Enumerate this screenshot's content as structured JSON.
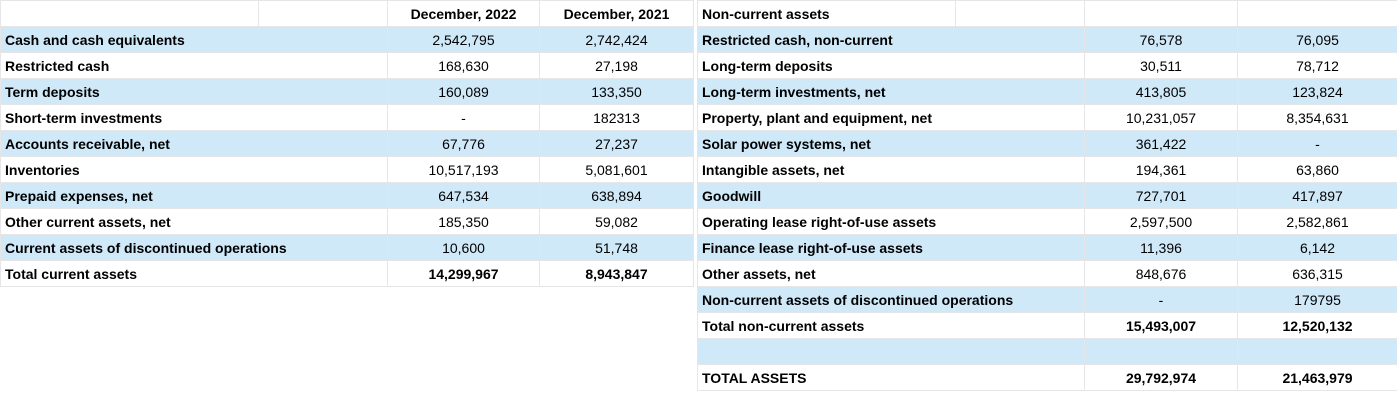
{
  "left": {
    "headers": [
      "",
      "December, 2022",
      "December, 2021"
    ],
    "rows": [
      {
        "label": "Cash and cash equivalents",
        "v2022": "2,542,795",
        "v2021": "2,742,424",
        "shaded": true,
        "bold": false
      },
      {
        "label": "Restricted cash",
        "v2022": "168,630",
        "v2021": "27,198",
        "shaded": false,
        "bold": false
      },
      {
        "label": "Term deposits",
        "v2022": "160,089",
        "v2021": "133,350",
        "shaded": true,
        "bold": false
      },
      {
        "label": "Short-term investments",
        "v2022": "-",
        "v2021": "182313",
        "shaded": false,
        "bold": false
      },
      {
        "label": "Accounts receivable, net",
        "v2022": "67,776",
        "v2021": "27,237",
        "shaded": true,
        "bold": false
      },
      {
        "label": "Inventories",
        "v2022": "10,517,193",
        "v2021": "5,081,601",
        "shaded": false,
        "bold": false
      },
      {
        "label": "Prepaid expenses, net",
        "v2022": "647,534",
        "v2021": "638,894",
        "shaded": true,
        "bold": false
      },
      {
        "label": "Other current assets, net",
        "v2022": "185,350",
        "v2021": "59,082",
        "shaded": false,
        "bold": false
      },
      {
        "label": "Current assets of discontinued operations",
        "v2022": "10,600",
        "v2021": "51,748",
        "shaded": true,
        "bold": false
      },
      {
        "label": "Total current assets",
        "v2022": "14,299,967",
        "v2021": "8,943,847",
        "shaded": false,
        "bold": true
      }
    ]
  },
  "right": {
    "title": "Non-current assets",
    "rows": [
      {
        "label": "Restricted cash, non-current",
        "v2022": "76,578",
        "v2021": "76,095",
        "shaded": true,
        "bold": false
      },
      {
        "label": "Long-term deposits",
        "v2022": "30,511",
        "v2021": "78,712",
        "shaded": false,
        "bold": false
      },
      {
        "label": "Long-term investments, net",
        "v2022": "413,805",
        "v2021": "123,824",
        "shaded": true,
        "bold": false
      },
      {
        "label": "Property, plant and equipment, net",
        "v2022": "10,231,057",
        "v2021": "8,354,631",
        "shaded": false,
        "bold": false
      },
      {
        "label": "Solar power systems, net",
        "v2022": "361,422",
        "v2021": "-",
        "shaded": true,
        "bold": false
      },
      {
        "label": "Intangible assets, net",
        "v2022": "194,361",
        "v2021": "63,860",
        "shaded": false,
        "bold": false
      },
      {
        "label": "Goodwill",
        "v2022": "727,701",
        "v2021": "417,897",
        "shaded": true,
        "bold": false
      },
      {
        "label": "Operating lease right-of-use assets",
        "v2022": "2,597,500",
        "v2021": "2,582,861",
        "shaded": false,
        "bold": false
      },
      {
        "label": "Finance lease right-of-use assets",
        "v2022": "11,396",
        "v2021": "6,142",
        "shaded": true,
        "bold": false
      },
      {
        "label": "Other assets, net",
        "v2022": "848,676",
        "v2021": "636,315",
        "shaded": false,
        "bold": false
      },
      {
        "label": "Non-current assets of discontinued operations",
        "v2022": "-",
        "v2021": "179795",
        "shaded": true,
        "bold": false
      },
      {
        "label": "Total non-current assets",
        "v2022": "15,493,007",
        "v2021": "12,520,132",
        "shaded": false,
        "bold": true
      },
      {
        "label": "",
        "v2022": "",
        "v2021": "",
        "shaded": true,
        "bold": false
      },
      {
        "label": "TOTAL ASSETS",
        "v2022": "29,792,974",
        "v2021": "21,463,979",
        "shaded": false,
        "bold": true
      }
    ]
  },
  "colors": {
    "row_shade": "#cfe9f9",
    "grid": "#e6e6e6"
  }
}
